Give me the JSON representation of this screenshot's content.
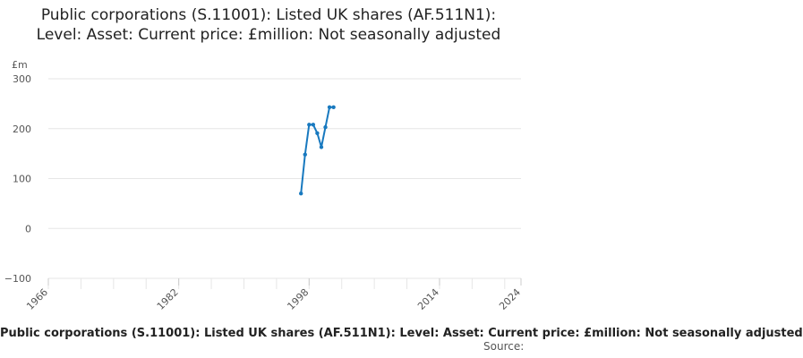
{
  "chart_data": {
    "type": "line",
    "title": "Public corporations (S.11001): Listed UK shares (AF.511N1): Level: Asset: Current price: £million: Not seasonally adjusted",
    "unit_label": "£m",
    "caption": "Public corporations (S.11001): Listed UK shares (AF.511N1): Level: Asset: Current price: £million: Not seasonally adjusted",
    "source_label": "Source:",
    "xlim": [
      1966,
      2024
    ],
    "x_ticks": [
      "1966",
      "1982",
      "1998",
      "2014",
      "2024"
    ],
    "ylim": [
      -100,
      300
    ],
    "y_ticks": [
      "300",
      "200",
      "100",
      "0",
      "−100"
    ],
    "grid": true,
    "series": [
      {
        "color": "#1879bf",
        "x": [
          1997,
          1997.5,
          1998,
          1998.5,
          1999,
          1999.5,
          2000,
          2000.5,
          2001
        ],
        "y": [
          70,
          148,
          208,
          208,
          191,
          163,
          203,
          243,
          243
        ]
      }
    ]
  }
}
